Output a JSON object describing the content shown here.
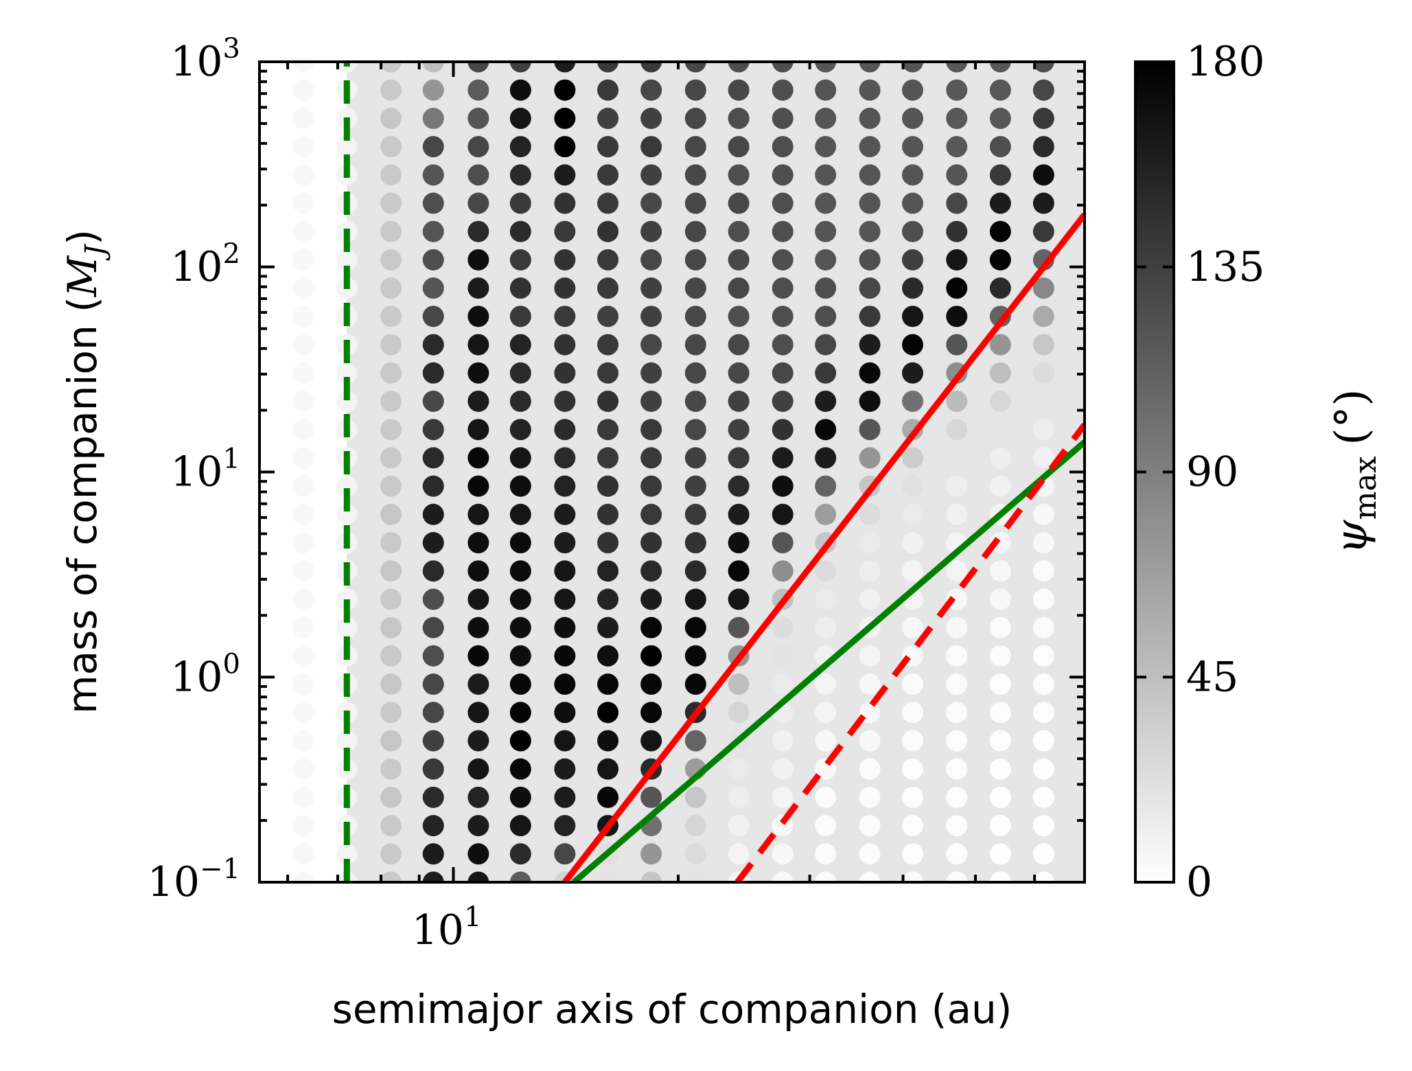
{
  "chart_data": {
    "type": "scatter",
    "xlabel": "semimajor axis of companion (au)",
    "ylabel_text": "mass of companion (",
    "ylabel_math": "M",
    "ylabel_sub": "J",
    "ylabel_close": ")",
    "xscale": "log",
    "yscale": "log",
    "xlim": [
      5.5,
      70
    ],
    "ylim": [
      0.1,
      1000
    ],
    "x_ticks": [
      {
        "value": 10,
        "base": "10",
        "exp": "1"
      }
    ],
    "y_ticks": [
      {
        "value": 0.1,
        "base": "10",
        "exp": "−1"
      },
      {
        "value": 1,
        "base": "10",
        "exp": "0"
      },
      {
        "value": 10,
        "base": "10",
        "exp": "1"
      },
      {
        "value": 100,
        "base": "10",
        "exp": "2"
      },
      {
        "value": 1000,
        "base": "10",
        "exp": "3"
      }
    ],
    "colorbar": {
      "label_symbol": "ψ",
      "label_sub": "max",
      "label_unit": "(°)",
      "min": 0,
      "max": 180,
      "ticks": [
        "0",
        "45",
        "90",
        "135",
        "180"
      ],
      "tick_values": [
        0,
        45,
        90,
        135,
        180
      ]
    },
    "shaded_region": {
      "x_from": 7.2,
      "x_to": 70,
      "y_from": 0.1,
      "y_to": 1000,
      "color": "#e6e6e6"
    },
    "lines": [
      {
        "name": "green dashed vertical",
        "color": "#008000",
        "style": "dashed",
        "points": [
          [
            7.2,
            0.1
          ],
          [
            7.2,
            1000
          ]
        ]
      },
      {
        "name": "red solid",
        "color": "#ff0000",
        "style": "solid",
        "points": [
          [
            14.1,
            0.1
          ],
          [
            70,
            180
          ]
        ]
      },
      {
        "name": "green solid",
        "color": "#008000",
        "style": "solid",
        "points": [
          [
            14.5,
            0.1
          ],
          [
            70,
            14
          ]
        ]
      },
      {
        "name": "red dashed",
        "color": "#ff0000",
        "style": "dashed",
        "points": [
          [
            24,
            0.1
          ],
          [
            70,
            17
          ]
        ]
      }
    ],
    "x_values": [
      6.3,
      7.2,
      8.25,
      9.4,
      10.8,
      12.3,
      14.1,
      16.1,
      18.4,
      21.1,
      24.1,
      27.6,
      31.5,
      36.1,
      41.2,
      47.2,
      54.0,
      61.7
    ],
    "y_count": 30,
    "y_range": [
      0.1,
      1000
    ],
    "psi_max_grid": [
      [
        5,
        5,
        5,
        5,
        5,
        5,
        5,
        5,
        5,
        5,
        5,
        5,
        5,
        5,
        5,
        5,
        5,
        5,
        5,
        5,
        5,
        5,
        5,
        5,
        5,
        5,
        5,
        5,
        5,
        5
      ],
      [
        8,
        8,
        8,
        8,
        8,
        8,
        8,
        8,
        8,
        8,
        8,
        8,
        8,
        8,
        8,
        8,
        8,
        8,
        8,
        8,
        8,
        8,
        8,
        8,
        8,
        8,
        8,
        8,
        8,
        8
      ],
      [
        38,
        38,
        38,
        40,
        38,
        40,
        38,
        40,
        38,
        40,
        38,
        40,
        38,
        40,
        38,
        38,
        38,
        38,
        38,
        38,
        38,
        38,
        38,
        38,
        38,
        38,
        38,
        40,
        38,
        38
      ],
      [
        160,
        160,
        155,
        150,
        140,
        135,
        130,
        130,
        125,
        130,
        125,
        150,
        160,
        160,
        150,
        150,
        140,
        130,
        150,
        150,
        130,
        120,
        125,
        120,
        125,
        120,
        130,
        95,
        75,
        45
      ],
      [
        165,
        170,
        160,
        155,
        165,
        160,
        165,
        160,
        175,
        170,
        165,
        170,
        170,
        165,
        175,
        175,
        165,
        160,
        170,
        165,
        170,
        160,
        170,
        150,
        130,
        125,
        130,
        120,
        115,
        130
      ],
      [
        115,
        150,
        165,
        170,
        175,
        180,
        178,
        175,
        170,
        170,
        170,
        172,
        172,
        165,
        170,
        165,
        155,
        150,
        150,
        155,
        140,
        145,
        140,
        150,
        140,
        150,
        155,
        165,
        170,
        135
      ],
      [
        30,
        130,
        155,
        160,
        160,
        165,
        170,
        175,
        175,
        170,
        165,
        165,
        160,
        160,
        155,
        150,
        150,
        145,
        145,
        145,
        140,
        145,
        145,
        140,
        145,
        160,
        180,
        180,
        180,
        160
      ],
      [
        20,
        22,
        165,
        175,
        165,
        170,
        180,
        175,
        170,
        160,
        155,
        155,
        145,
        145,
        145,
        140,
        140,
        145,
        140,
        140,
        135,
        140,
        140,
        145,
        140,
        140,
        140,
        135,
        140,
        140
      ],
      [
        40,
        75,
        100,
        120,
        150,
        165,
        175,
        175,
        180,
        175,
        160,
        150,
        145,
        140,
        140,
        140,
        140,
        135,
        135,
        130,
        135,
        135,
        130,
        135,
        130,
        135,
        140,
        135,
        130,
        140
      ],
      [
        20,
        25,
        30,
        40,
        70,
        110,
        150,
        175,
        175,
        175,
        165,
        150,
        145,
        140,
        135,
        135,
        130,
        130,
        130,
        130,
        130,
        130,
        130,
        130,
        130,
        130,
        130,
        130,
        130,
        130
      ],
      [
        8,
        8,
        10,
        12,
        15,
        20,
        30,
        45,
        75,
        120,
        165,
        175,
        170,
        160,
        150,
        140,
        135,
        135,
        130,
        130,
        125,
        130,
        130,
        125,
        130,
        125,
        130,
        125,
        130,
        125
      ],
      [
        5,
        5,
        5,
        8,
        10,
        10,
        12,
        15,
        20,
        25,
        45,
        80,
        120,
        165,
        170,
        160,
        145,
        135,
        130,
        125,
        125,
        125,
        125,
        125,
        125,
        125,
        125,
        125,
        125,
        125
      ],
      [
        3,
        3,
        3,
        3,
        5,
        5,
        8,
        8,
        10,
        12,
        15,
        25,
        40,
        70,
        110,
        160,
        175,
        160,
        140,
        130,
        125,
        125,
        120,
        120,
        120,
        120,
        120,
        120,
        120,
        120
      ],
      [
        3,
        3,
        3,
        3,
        3,
        5,
        5,
        5,
        8,
        8,
        10,
        12,
        15,
        25,
        40,
        75,
        120,
        170,
        175,
        160,
        140,
        130,
        125,
        120,
        120,
        120,
        120,
        120,
        120,
        120
      ],
      [
        2,
        2,
        2,
        2,
        2,
        3,
        3,
        3,
        5,
        5,
        8,
        8,
        10,
        15,
        22,
        35,
        60,
        100,
        160,
        178,
        165,
        150,
        135,
        125,
        120,
        120,
        120,
        120,
        120,
        120
      ],
      [
        2,
        2,
        2,
        2,
        2,
        2,
        3,
        3,
        3,
        5,
        5,
        8,
        8,
        10,
        12,
        18,
        28,
        48,
        80,
        120,
        170,
        178,
        165,
        145,
        130,
        120,
        118,
        118,
        118,
        118
      ],
      [
        1,
        1,
        1,
        1,
        1,
        2,
        2,
        2,
        3,
        3,
        5,
        5,
        8,
        8,
        10,
        12,
        18,
        28,
        45,
        75,
        110,
        150,
        178,
        178,
        160,
        140,
        125,
        118,
        118,
        118
      ],
      [
        1,
        1,
        1,
        1,
        1,
        1,
        2,
        2,
        2,
        3,
        3,
        3,
        5,
        5,
        8,
        10,
        12,
        18,
        25,
        40,
        60,
        85,
        110,
        140,
        160,
        170,
        150,
        140,
        130,
        125
      ]
    ]
  }
}
